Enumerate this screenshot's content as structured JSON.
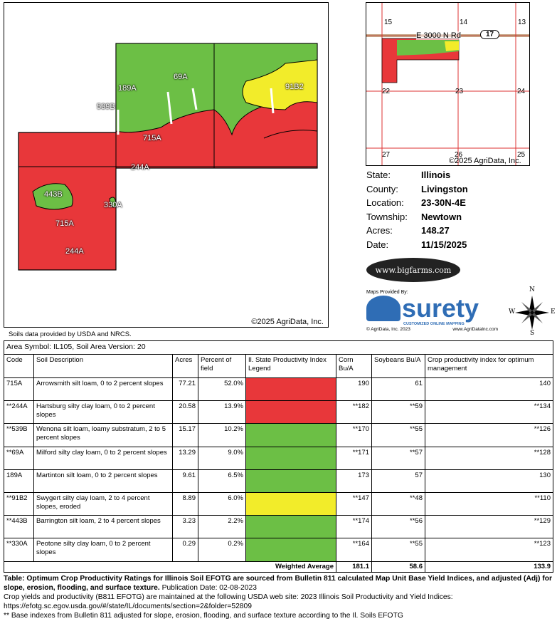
{
  "map": {
    "copyright": "©2025 AgriData, Inc.",
    "labels": [
      "189A",
      "69A",
      "539B",
      "91B2",
      "715A",
      "244A",
      "443B",
      "330A",
      "715A",
      "244A"
    ]
  },
  "inset": {
    "copyright": "©2025 AgriData, Inc.",
    "road": "E 3000 N Rd",
    "route": "17",
    "sections": [
      "15",
      "14",
      "13",
      "22",
      "23",
      "24",
      "27",
      "26",
      "25"
    ]
  },
  "info": [
    {
      "k": "State:",
      "v": "Illinois"
    },
    {
      "k": "County:",
      "v": "Livingston"
    },
    {
      "k": "Location:",
      "v": "23-30N-4E"
    },
    {
      "k": "Township:",
      "v": "Newtown"
    },
    {
      "k": "Acres:",
      "v": "148.27"
    },
    {
      "k": "Date:",
      "v": "11/15/2025"
    }
  ],
  "logos": {
    "bigfarms": "www.bigfarms.com",
    "maps_by": "Maps Provided By:",
    "surety": "surety",
    "surety_sub": "CUSTOMIZED ONLINE MAPPING",
    "agridata_copy": "© AgriData, Inc. 2023",
    "agridata_url": "www.AgriDataInc.com",
    "compass": {
      "n": "N",
      "s": "S",
      "e": "E",
      "w": "W"
    }
  },
  "soil_source": "Soils data provided by USDA and NRCS.",
  "table": {
    "area": "Area Symbol: IL105, Soil Area Version: 20",
    "headers": [
      "Code",
      "Soil Description",
      "Acres",
      "Percent of field",
      "Il. State Productivity Index Legend",
      "Corn Bu/A",
      "Soybeans Bu/A",
      "Crop productivity index for optimum management"
    ],
    "rows": [
      {
        "code": "715A",
        "desc": "Arrowsmith silt loam, 0 to 2 percent slopes",
        "acres": "77.21",
        "pct": "52.0%",
        "color": "#e8373a",
        "corn": "190",
        "soy": "61",
        "cpi": "140"
      },
      {
        "code": "**244A",
        "desc": "Hartsburg silty clay loam, 0 to 2 percent slopes",
        "acres": "20.58",
        "pct": "13.9%",
        "color": "#e8373a",
        "corn": "**182",
        "soy": "**59",
        "cpi": "**134"
      },
      {
        "code": "**539B",
        "desc": "Wenona silt loam, loamy substratum, 2 to 5 percent slopes",
        "acres": "15.17",
        "pct": "10.2%",
        "color": "#6cbf45",
        "corn": "**170",
        "soy": "**55",
        "cpi": "**126"
      },
      {
        "code": "**69A",
        "desc": "Milford silty clay loam, 0 to 2 percent slopes",
        "acres": "13.29",
        "pct": "9.0%",
        "color": "#6cbf45",
        "corn": "**171",
        "soy": "**57",
        "cpi": "**128"
      },
      {
        "code": "189A",
        "desc": "Martinton silt loam, 0 to 2 percent slopes",
        "acres": "9.61",
        "pct": "6.5%",
        "color": "#6cbf45",
        "corn": "173",
        "soy": "57",
        "cpi": "130"
      },
      {
        "code": "**91B2",
        "desc": "Swygert silty clay loam, 2 to 4 percent slopes, eroded",
        "acres": "8.89",
        "pct": "6.0%",
        "color": "#f2ec2a",
        "corn": "**147",
        "soy": "**48",
        "cpi": "**110"
      },
      {
        "code": "**443B",
        "desc": "Barrington silt loam, 2 to 4 percent slopes",
        "acres": "3.23",
        "pct": "2.2%",
        "color": "#6cbf45",
        "corn": "**174",
        "soy": "**56",
        "cpi": "**129"
      },
      {
        "code": "**330A",
        "desc": "Peotone silty clay loam, 0 to 2 percent slopes",
        "acres": "0.29",
        "pct": "0.2%",
        "color": "#6cbf45",
        "corn": "**164",
        "soy": "**55",
        "cpi": "**123"
      }
    ],
    "weighted": {
      "label": "Weighted Average",
      "corn": "181.1",
      "soy": "58.6",
      "cpi": "133.9"
    }
  },
  "footer": {
    "bold": "Table: Optimum Crop Productivity Ratings for Illinois Soil EFOTG are sourced from Bulletin 811 calculated Map Unit Base Yield Indices, and adjusted (Adj) for slope, erosion, flooding, and surface texture.",
    "pub": " Publication Date: 02-08-2023",
    "line2": "Crop yields and productivity (B811 EFOTG) are maintained at the following USDA web site: 2023 Illinois Soil Productivity and Yield Indices:",
    "url": "https://efotg.sc.egov.usda.gov/#/state/IL/documents/section=2&folder=52809",
    "note": "** Base indexes from Bulletin 811 adjusted for slope, erosion, flooding, and surface texture according to the Il. Soils EFOTG"
  }
}
